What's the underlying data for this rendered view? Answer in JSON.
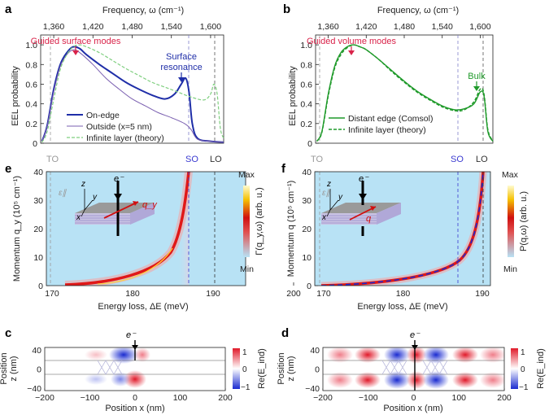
{
  "figure": {
    "panels": {
      "a": {
        "label": "a",
        "top_axis_label": "Frequency, ω (cm⁻¹)",
        "top_ticks": [
          "1,360",
          "1,420",
          "1,480",
          "1,540",
          "1,600"
        ],
        "ylabel": "EEL probability",
        "yticks": [
          "0",
          "0.2",
          "0.4",
          "0.6",
          "0.8",
          "1.0"
        ],
        "annotations": {
          "guided": "Guided surface modes",
          "surface1": "Surface",
          "surface2": "resonance"
        },
        "legend": [
          "On-edge",
          "Outside (x=5 nm)",
          "Infinite layer (theory)"
        ]
      },
      "b": {
        "label": "b",
        "top_axis_label": "Frequency, ω (cm⁻¹)",
        "top_ticks": [
          "1,360",
          "1,420",
          "1,480",
          "1,540",
          "1,600"
        ],
        "ylabel": "EEL probability",
        "yticks": [
          "0",
          "0.2",
          "0.4",
          "0.6",
          "0.8",
          "1.0"
        ],
        "annotations": {
          "guided": "Guided volume modes",
          "bulk": "Bulk"
        },
        "legend": [
          "Distant edge (Comsol)",
          "Infinite layer (theory)"
        ]
      },
      "e": {
        "label": "e",
        "ylabel": "Momentum q_y (10⁵ cm⁻¹)",
        "xlabel": "Energy loss, ΔE (meV)",
        "xticks": [
          "170",
          "180",
          "190",
          "200"
        ],
        "yticks": [
          "0",
          "10",
          "20",
          "30",
          "40"
        ],
        "markers": [
          "TO",
          "SO",
          "LO"
        ],
        "colorbar": {
          "max": "Max",
          "min": "Min",
          "label": "Γ(q_y,ω) (arb. u.)"
        },
        "inset": {
          "electron": "e⁻",
          "z": "z",
          "y": "y",
          "x": "x",
          "eps": "ε∥",
          "q": "q_y"
        }
      },
      "f": {
        "label": "f",
        "ylabel": "Momentum q (10⁵ cm⁻¹)",
        "xlabel": "Energy loss, ΔE (meV)",
        "xticks": [
          "170",
          "180",
          "190",
          "200"
        ],
        "yticks": [
          "0",
          "10",
          "20",
          "30",
          "40"
        ],
        "markers": [
          "TO",
          "SO",
          "LO"
        ],
        "colorbar": {
          "max": "Max",
          "min": "Min",
          "label": "P(q,ω) (arb. u.)"
        },
        "inset": {
          "electron": "e⁻",
          "z": "z",
          "y": "y",
          "x": "x",
          "eps": "ε∥",
          "q": "q"
        }
      },
      "c": {
        "label": "c",
        "ylabel": "Position z (nm)",
        "xlabel": "Position x (nm)",
        "xticks": [
          "−200",
          "−100",
          "0",
          "100",
          "200"
        ],
        "yticks": [
          "40",
          "0",
          "−40"
        ],
        "electron": "e⁻",
        "colorbar": {
          "ticks": [
            "1",
            "0",
            "−1"
          ],
          "label": "Re(E_ind)"
        }
      },
      "d": {
        "label": "d",
        "ylabel": "Position z (nm)",
        "xlabel": "Position x (nm)",
        "xticks": [
          "−200",
          "−100",
          "0",
          "100",
          "200"
        ],
        "yticks": [
          "40",
          "0",
          "−40"
        ],
        "electron": "e⁻",
        "colorbar": {
          "ticks": [
            "1",
            "0",
            "−1"
          ],
          "label": "Re(E_ind)"
        }
      }
    },
    "colors": {
      "blue": "#1f2ea8",
      "purple": "#7a5fb0",
      "lightgreen": "#7fcf7f",
      "green": "#1f9a2a",
      "red": "#d9234a",
      "bg": "#b8e2f5"
    }
  },
  "chart_data": [
    {
      "type": "line",
      "panel": "a",
      "x_label": "Frequency ω (cm⁻¹)",
      "xlim": [
        1340,
        1620
      ],
      "ylim": [
        0,
        1.1
      ],
      "series": [
        {
          "name": "On-edge",
          "x": [
            1342,
            1350,
            1360,
            1370,
            1380,
            1390,
            1400,
            1410,
            1430,
            1450,
            1470,
            1490,
            1510,
            1530,
            1545,
            1555,
            1562,
            1567,
            1572,
            1580,
            1600,
            1620
          ],
          "y": [
            0.02,
            0.18,
            0.55,
            0.8,
            0.92,
            0.98,
            0.96,
            0.9,
            0.8,
            0.71,
            0.62,
            0.55,
            0.49,
            0.45,
            0.5,
            0.6,
            0.66,
            0.52,
            0.2,
            0.05,
            0.02,
            0.01
          ]
        },
        {
          "name": "Outside (x=5 nm)",
          "x": [
            1342,
            1350,
            1360,
            1370,
            1380,
            1390,
            1400,
            1420,
            1440,
            1460,
            1480,
            1500,
            1520,
            1540,
            1560,
            1570,
            1580,
            1600,
            1620
          ],
          "y": [
            0.02,
            0.17,
            0.52,
            0.78,
            0.9,
            0.95,
            0.92,
            0.8,
            0.66,
            0.55,
            0.45,
            0.38,
            0.31,
            0.26,
            0.2,
            0.14,
            0.04,
            0.02,
            0.01
          ]
        },
        {
          "name": "Infinite layer (theory)",
          "x": [
            1342,
            1350,
            1360,
            1370,
            1380,
            1390,
            1400,
            1410,
            1430,
            1450,
            1470,
            1490,
            1510,
            1530,
            1550,
            1570,
            1590,
            1600,
            1605,
            1610,
            1615,
            1620
          ],
          "y": [
            0.01,
            0.12,
            0.45,
            0.75,
            0.9,
            0.98,
            1.0,
            0.98,
            0.92,
            0.84,
            0.76,
            0.69,
            0.62,
            0.57,
            0.52,
            0.47,
            0.44,
            0.5,
            0.6,
            0.5,
            0.15,
            0.05
          ]
        }
      ]
    },
    {
      "type": "line",
      "panel": "b",
      "x_label": "Frequency ω (cm⁻¹)",
      "xlim": [
        1340,
        1620
      ],
      "ylim": [
        0,
        1.1
      ],
      "series": [
        {
          "name": "Distant edge (Comsol)",
          "x": [
            1342,
            1350,
            1360,
            1370,
            1380,
            1390,
            1400,
            1410,
            1420,
            1440,
            1460,
            1480,
            1500,
            1520,
            1540,
            1560,
            1575,
            1590,
            1600,
            1606,
            1612,
            1620
          ],
          "y": [
            0.02,
            0.12,
            0.5,
            0.78,
            0.92,
            0.98,
            1.0,
            0.98,
            0.95,
            0.85,
            0.74,
            0.63,
            0.53,
            0.45,
            0.38,
            0.34,
            0.35,
            0.4,
            0.52,
            0.48,
            0.12,
            0.02
          ]
        },
        {
          "name": "Infinite layer (theory)",
          "x": [
            1342,
            1350,
            1360,
            1370,
            1380,
            1390,
            1400,
            1410,
            1420,
            1440,
            1460,
            1480,
            1500,
            1520,
            1540,
            1560,
            1575,
            1590,
            1600,
            1606,
            1612,
            1620
          ],
          "y": [
            0.02,
            0.11,
            0.48,
            0.76,
            0.9,
            0.97,
            1.0,
            0.98,
            0.95,
            0.85,
            0.73,
            0.62,
            0.52,
            0.44,
            0.37,
            0.33,
            0.34,
            0.42,
            0.55,
            0.5,
            0.14,
            0.02
          ]
        }
      ]
    }
  ]
}
